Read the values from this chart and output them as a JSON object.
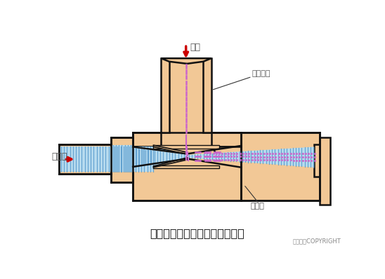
{
  "title": "射流式水力冲击式空气扩散装置",
  "copyright": "东方仿真COPYRIGHT",
  "label_air": "空气",
  "label_air_pipe": "空气竖管",
  "label_mixed": "混合液",
  "label_diffuser": "扩散器",
  "body_color": "#F2C896",
  "body_edge": "#111111",
  "blue_fill": "#B8DCEF",
  "blue_line": "#5599CC",
  "pink_dot": "#CC66CC",
  "bg_color": "#FFFFFF",
  "arrow_color": "#CC0000",
  "text_color": "#555555",
  "title_color": "#111111",
  "annot_line_color": "#333333"
}
